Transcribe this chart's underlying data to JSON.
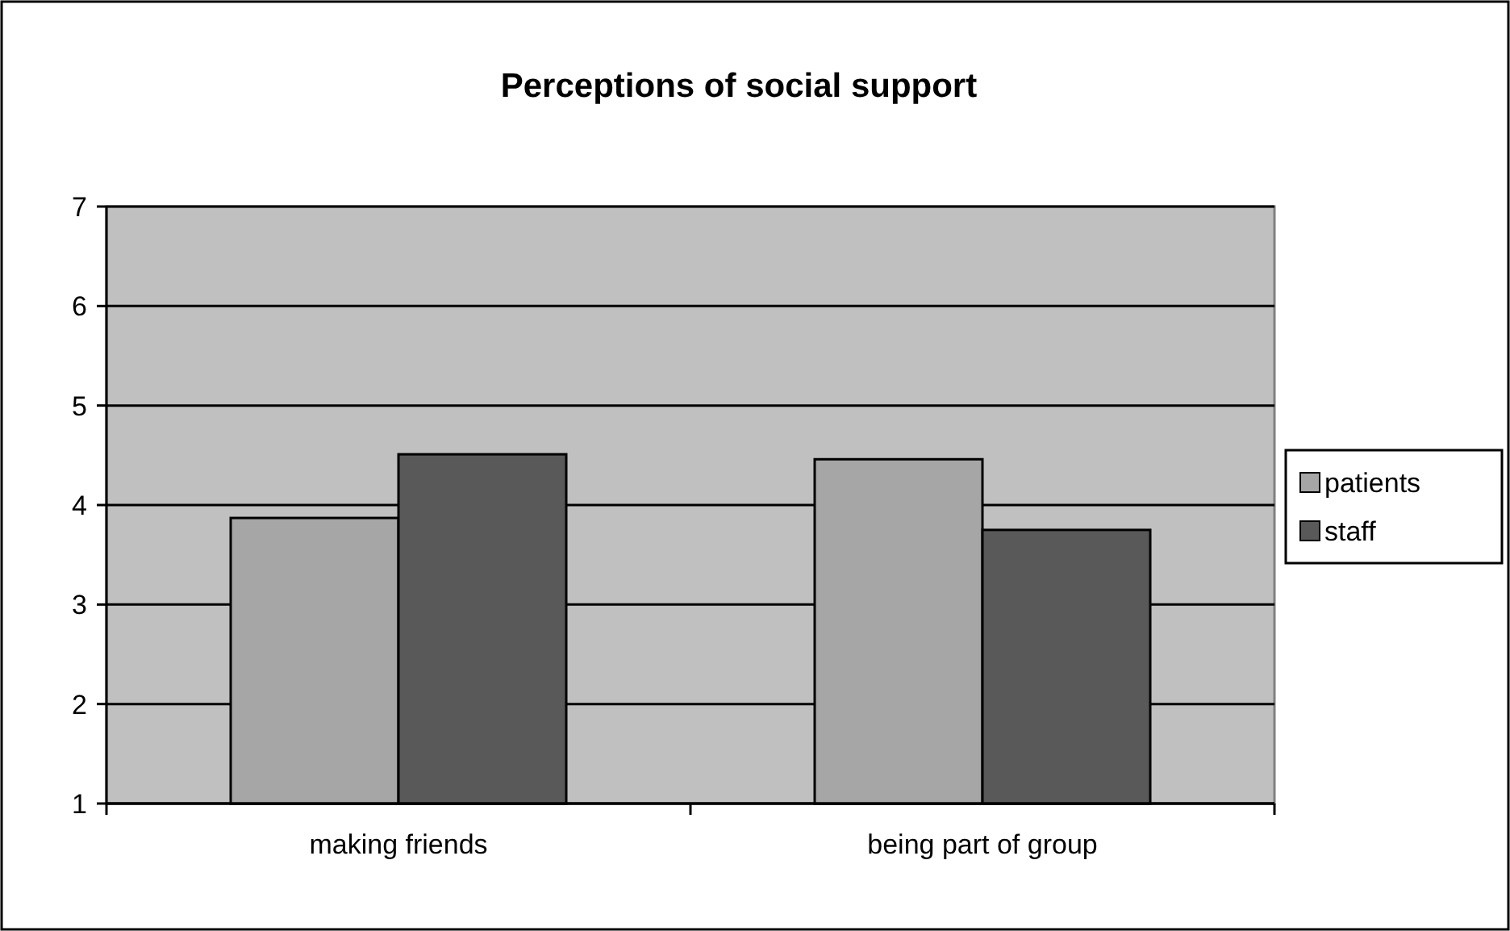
{
  "chart_data": {
    "type": "bar",
    "title": "Perceptions of social support",
    "categories": [
      "making friends",
      "being part of group"
    ],
    "series": [
      {
        "name": "patients",
        "color": "#a6a6a6",
        "values": [
          3.87,
          4.46
        ]
      },
      {
        "name": "staff",
        "color": "#595959",
        "values": [
          4.51,
          3.75
        ]
      }
    ],
    "ylim": [
      1,
      7
    ],
    "yticks": [
      1,
      2,
      3,
      4,
      5,
      6,
      7
    ],
    "grid": "y",
    "legend": "right"
  }
}
